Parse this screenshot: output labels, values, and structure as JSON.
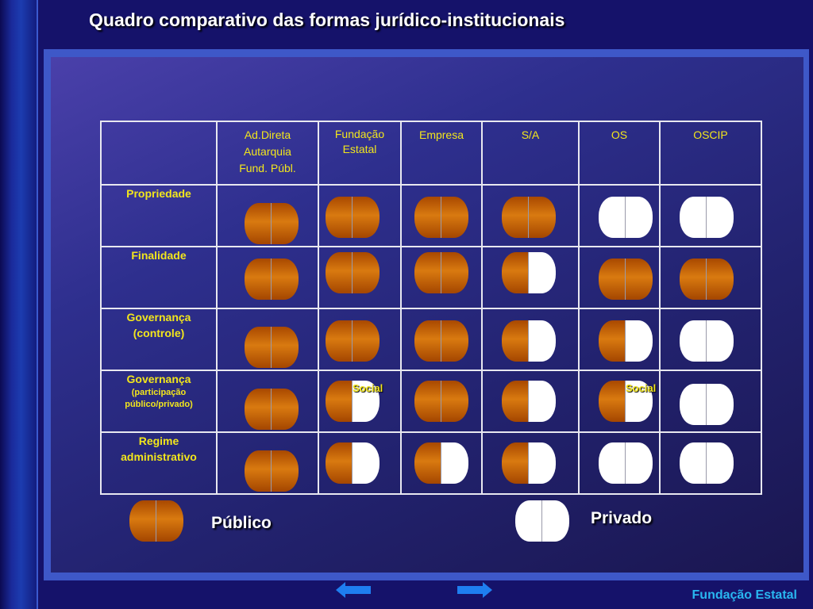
{
  "title": "Quadro comparativo das formas jurídico-institucionais",
  "columns": [
    {
      "lines": [
        "Ad.Direta",
        "Autarquia",
        "Fund. Públ."
      ]
    },
    {
      "lines": [
        "Fundação",
        "Estatal"
      ]
    },
    {
      "lines": [
        "Empresa"
      ]
    },
    {
      "lines": [
        "S/A"
      ]
    },
    {
      "lines": [
        "OS"
      ]
    },
    {
      "lines": [
        "OSCIP"
      ]
    }
  ],
  "rows": [
    {
      "label": "Propriedade",
      "sub": "",
      "cells": [
        "public",
        "public",
        "public",
        "public",
        "private",
        "private"
      ]
    },
    {
      "label": "Finalidade",
      "sub": "",
      "cells": [
        "public",
        "public",
        "public",
        "mixed",
        "public",
        "public"
      ]
    },
    {
      "label": "Governança",
      "label2": "(controle)",
      "sub": "",
      "cells": [
        "public",
        "public",
        "public",
        "mixed",
        "mixed",
        "private"
      ]
    },
    {
      "label": "Governança",
      "sub": "(participação público/privado)",
      "cells": [
        "public",
        "mixed",
        "public",
        "mixed",
        "mixed",
        "private"
      ]
    },
    {
      "label": "Regime administrativo",
      "sub": "",
      "cells": [
        "public",
        "mixed",
        "mixed",
        "mixed",
        "private",
        "private"
      ]
    }
  ],
  "annotations": [
    {
      "text": "Social",
      "row": 3,
      "col": 1
    },
    {
      "text": "Social",
      "row": 3,
      "col": 4
    }
  ],
  "legend": {
    "public_label": "Público",
    "private_label": "Privado"
  },
  "colors": {
    "public": "#c8640a",
    "private": "#ffffff",
    "text_accent": "#f2e61c",
    "footer": "#29b6f0"
  },
  "nav": {
    "prev_icon": "left-arrow-icon",
    "next_icon": "right-arrow-icon"
  },
  "footer": "Fundação Estatal"
}
